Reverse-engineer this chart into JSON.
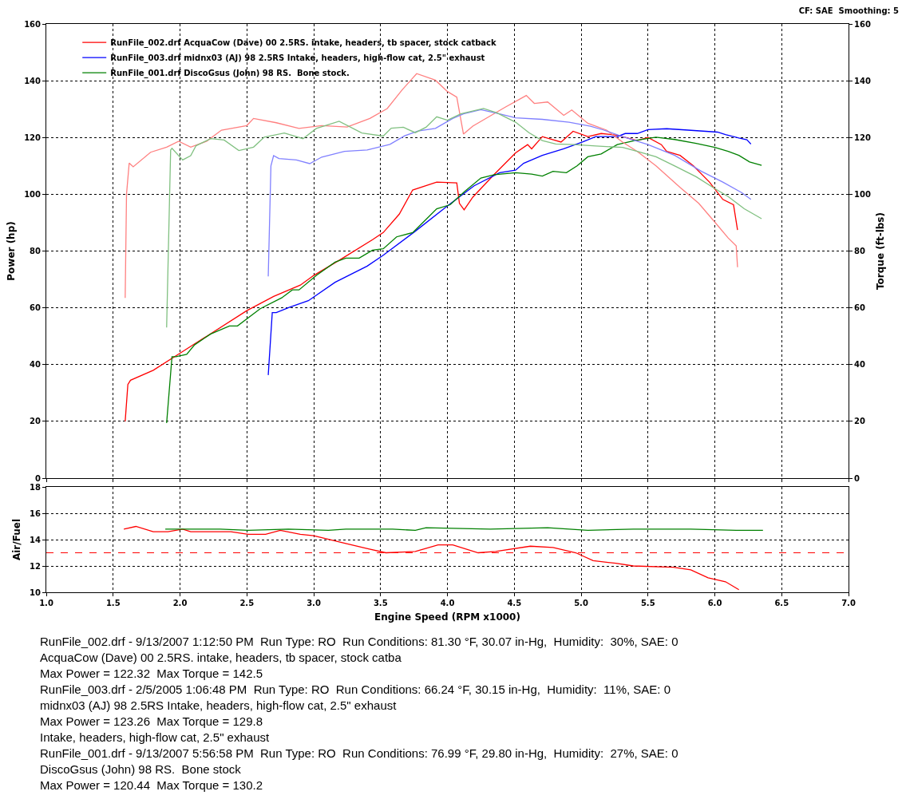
{
  "chart_data": [
    {
      "type": "line",
      "ylabel": "Power (hp)",
      "y2label": "Torque (ft-lbs)",
      "xlim": [
        1,
        7
      ],
      "xticks": [
        1,
        1.5,
        2,
        2.5,
        3,
        3.5,
        4,
        4.5,
        5,
        5.5,
        6,
        6.5,
        7
      ],
      "ylim": [
        0,
        160
      ],
      "yticks": [
        0,
        20,
        40,
        60,
        80,
        100,
        120,
        140,
        160
      ],
      "y2lim": [
        0,
        160
      ],
      "y2ticks": [
        0,
        20,
        40,
        60,
        80,
        100,
        120,
        140,
        160
      ],
      "tick_labels": "y",
      "grid": true,
      "legend": "top left",
      "annotations": [
        "CF: SAE  Smoothing: 5"
      ],
      "series": [
        {
          "name": "RunFile_002.drf AcquaCow (Dave) 00 2.5RS. intake, headers, tb spacer, stock catback",
          "color": "#ff0000",
          "x": [
            1.59,
            1.61,
            1.63,
            1.8,
            2.0,
            2.2,
            2.5,
            2.7,
            2.9,
            3.0,
            3.2,
            3.44,
            3.52,
            3.64,
            3.74,
            3.92,
            4.07,
            4.09,
            4.125,
            4.19,
            4.35,
            4.51,
            4.6,
            4.63,
            4.71,
            4.85,
            4.94,
            5.05,
            5.15,
            5.27,
            5.42,
            5.5,
            5.6,
            5.64,
            5.74,
            5.84,
            5.96,
            6.06,
            6.14,
            6.17
          ],
          "values": [
            20,
            33,
            34.5,
            38,
            44,
            50,
            59,
            64,
            68,
            71.4,
            77,
            84,
            86.5,
            93,
            101.5,
            104.3,
            104,
            96.8,
            94.5,
            99,
            107,
            114.6,
            117.5,
            116,
            120.3,
            118.4,
            122.2,
            120.3,
            121.4,
            120.8,
            118.9,
            120,
            117.5,
            115.1,
            113.7,
            110,
            104.3,
            98.2,
            96.3,
            87.4
          ]
        },
        {
          "name": "RunFile_003.drf midnx03 (AJ) 98 2.5RS Intake, headers, high-flow cat, 2.5\" exhaust",
          "color": "#0000ff",
          "x": [
            2.66,
            2.69,
            2.72,
            2.82,
            2.96,
            3.16,
            3.4,
            3.52,
            3.76,
            4.0,
            4.2,
            4.39,
            4.51,
            4.57,
            4.71,
            4.87,
            5.01,
            5.11,
            5.27,
            5.33,
            5.42,
            5.5,
            5.64,
            5.8,
            6.02,
            6.08,
            6.18,
            6.24,
            6.27
          ],
          "values": [
            36.3,
            58.3,
            58.3,
            60.2,
            62.5,
            69,
            74.7,
            78.5,
            87,
            95.9,
            103,
            107.6,
            108.5,
            110.9,
            113.7,
            116,
            118.4,
            120.3,
            120.3,
            121.4,
            121.4,
            122.8,
            123.1,
            122.6,
            121.9,
            121,
            119.8,
            119.2,
            117.7
          ]
        },
        {
          "name": "RunFile_001.drf DiscoGsus (John) 98 RS.  Bone stock.",
          "color": "#008000",
          "x": [
            1.9,
            1.94,
            1.97,
            2.05,
            2.11,
            2.23,
            2.37,
            2.43,
            2.6,
            2.76,
            2.84,
            2.89,
            3.02,
            3.16,
            3.24,
            3.34,
            3.44,
            3.52,
            3.62,
            3.74,
            3.82,
            3.92,
            4.02,
            4.13,
            4.25,
            4.35,
            4.51,
            4.63,
            4.71,
            4.79,
            4.89,
            4.97,
            5.05,
            5.15,
            5.27,
            5.4,
            5.56,
            5.7,
            5.86,
            6.0,
            6.1,
            6.18,
            6.26,
            6.35
          ],
          "values": [
            19.4,
            42.8,
            42.8,
            43.6,
            47,
            50.8,
            53.6,
            53.6,
            59.7,
            63.5,
            66.3,
            66.3,
            71.4,
            76.1,
            77.5,
            77.5,
            80.3,
            80.8,
            85,
            86.5,
            90.2,
            94.9,
            96.3,
            101,
            105.7,
            106.9,
            107.6,
            107.1,
            106.4,
            108.1,
            107.6,
            110,
            113.2,
            114.2,
            117.5,
            118.9,
            120.1,
            119.3,
            117.9,
            116.5,
            115.1,
            113.7,
            111.4,
            110.2
          ]
        },
        {
          "color": "#ff8080",
          "axis": "y2",
          "x": [
            1.59,
            1.6,
            1.62,
            1.65,
            1.78,
            1.9,
            1.99,
            2.08,
            2.2,
            2.31,
            2.5,
            2.55,
            2.72,
            2.89,
            3.06,
            3.25,
            3.42,
            3.55,
            3.66,
            3.77,
            3.91,
            4.0,
            4.07,
            4.12,
            4.19,
            4.31,
            4.43,
            4.59,
            4.65,
            4.75,
            4.87,
            4.93,
            5.05,
            5.19,
            5.31,
            5.42,
            5.56,
            5.74,
            5.88,
            6.0,
            6.1,
            6.16,
            6.17
          ],
          "values": [
            63.5,
            100,
            111,
            109.7,
            114.8,
            116.6,
            118.7,
            116.6,
            118.7,
            122.6,
            124.2,
            126.7,
            125.2,
            123.2,
            124.2,
            123.7,
            126.7,
            130.2,
            136.7,
            142.5,
            140.2,
            136.2,
            134.2,
            121.2,
            124,
            127.3,
            130.6,
            134.8,
            132,
            132.5,
            127.8,
            129.7,
            125,
            122.6,
            118.4,
            115.1,
            110,
            102.4,
            96.8,
            90.2,
            84.6,
            81.8,
            74.3
          ]
        },
        {
          "color": "#8080ff",
          "axis": "y2",
          "x": [
            2.66,
            2.68,
            2.7,
            2.74,
            2.87,
            2.97,
            3.06,
            3.23,
            3.4,
            3.57,
            3.68,
            3.78,
            3.91,
            4.04,
            4.12,
            4.25,
            4.39,
            4.51,
            4.71,
            4.91,
            5.07,
            5.17,
            5.31,
            5.5,
            5.7,
            5.9,
            6.06,
            6.2,
            6.27
          ],
          "values": [
            71.1,
            110,
            113.6,
            112.6,
            112.1,
            110.8,
            113.1,
            115.1,
            115.6,
            117.6,
            120.6,
            122.3,
            123.2,
            126.7,
            128.3,
            129.8,
            128.3,
            126.9,
            126.4,
            125.4,
            124,
            122.6,
            120.3,
            117.5,
            113.7,
            108.1,
            104.3,
            100.6,
            98.2
          ]
        },
        {
          "color": "#80c080",
          "axis": "y2",
          "x": [
            1.9,
            1.93,
            1.94,
            2.02,
            2.08,
            2.12,
            2.23,
            2.33,
            2.44,
            2.55,
            2.63,
            2.78,
            2.92,
            3.02,
            3.19,
            3.36,
            3.52,
            3.58,
            3.67,
            3.76,
            3.84,
            3.92,
            4.0,
            4.1,
            4.27,
            4.37,
            4.51,
            4.61,
            4.71,
            4.81,
            4.95,
            5.11,
            5.31,
            5.42,
            5.56,
            5.7,
            5.86,
            6.0,
            6.1,
            6.22,
            6.35
          ],
          "values": [
            53.1,
            115.6,
            116.2,
            112.1,
            113.6,
            117.1,
            119.6,
            119.1,
            115.4,
            116.6,
            120.1,
            121.6,
            119.6,
            123.2,
            125.7,
            121.6,
            120.5,
            123.3,
            123.6,
            121.7,
            123.6,
            127.3,
            126.1,
            128.3,
            130.2,
            128.7,
            125.4,
            121.7,
            118.9,
            117.7,
            117.5,
            117,
            116.5,
            115.1,
            113.2,
            110,
            106.2,
            102,
            99.2,
            94.9,
            91.4
          ]
        }
      ]
    },
    {
      "type": "line",
      "xlabel": "Engine Speed (RPM x1000)",
      "ylabel": "Air/Fuel",
      "xlim": [
        1,
        7
      ],
      "xticks": [
        {
          "value": 1,
          "label": "1.0"
        },
        1.5,
        {
          "value": 2,
          "label": "2.0"
        },
        2.5,
        {
          "value": 3,
          "label": "3.0"
        },
        3.5,
        {
          "value": 4,
          "label": "4.0"
        },
        4.5,
        {
          "value": 5,
          "label": "5.0"
        },
        5.5,
        {
          "value": 6,
          "label": "6.0"
        },
        6.5,
        {
          "value": 7,
          "label": "7.0"
        }
      ],
      "ylim": [
        10,
        18
      ],
      "yticks": [
        10,
        12,
        14,
        16,
        18
      ],
      "grid": true,
      "ref_lines": [
        {
          "axis": "y",
          "value": 13,
          "color": "#ff0000",
          "line_style": "dashed"
        }
      ],
      "annotations": [
        "RunFile_002.drf - 9/13/2007 1:12:50 PM  Run Type: RO  Run Conditions: 81.30 °F, 30.07 in-Hg,  Humidity:  30%, SAE: 0",
        "AcquaCow (Dave) 00 2.5RS. intake, headers, tb spacer, stock catba",
        "Max Power = 122.32  Max Torque = 142.5",
        "RunFile_003.drf - 2/5/2005 1:06:48 PM  Run Type: RO  Run Conditions: 66.24 °F, 30.15 in-Hg,  Humidity:  11%, SAE: 0",
        "midnx03 (AJ) 98 2.5RS Intake, headers, high-flow cat, 2.5\" exhaust",
        "Max Power = 123.26  Max Torque = 129.8",
        "Intake, headers, high-flow cat, 2.5\" exhaust",
        "RunFile_001.drf - 9/13/2007 5:56:58 PM  Run Type: RO  Run Conditions: 76.99 °F, 29.80 in-Hg,  Humidity:  27%, SAE: 0",
        "DiscoGsus (John) 98 RS.  Bone stock",
        "Max Power = 120.44  Max Torque = 130.2"
      ],
      "series": [
        {
          "color": "#ff0000",
          "x": [
            1.58,
            1.67,
            1.8,
            1.91,
            2.02,
            2.08,
            2.38,
            2.51,
            2.64,
            2.75,
            2.9,
            3.0,
            3.24,
            3.41,
            3.54,
            3.76,
            3.93,
            4.04,
            4.23,
            4.36,
            4.62,
            4.79,
            4.96,
            5.09,
            5.26,
            5.39,
            5.69,
            5.82,
            5.95,
            6.08,
            6.18
          ],
          "values": [
            14.8,
            15.0,
            14.6,
            14.6,
            14.8,
            14.6,
            14.6,
            14.4,
            14.4,
            14.7,
            14.4,
            14.3,
            13.7,
            13.3,
            13.0,
            13.1,
            13.6,
            13.6,
            13.0,
            13.1,
            13.5,
            13.4,
            13.0,
            12.4,
            12.2,
            12.0,
            11.9,
            11.7,
            11.1,
            10.8,
            10.2
          ]
        },
        {
          "color": "#008000",
          "x": [
            1.89,
            2.08,
            2.3,
            2.51,
            2.81,
            3.11,
            3.24,
            3.59,
            3.76,
            3.84,
            4.32,
            4.75,
            5.05,
            5.39,
            5.82,
            6.16,
            6.36
          ],
          "values": [
            14.8,
            14.8,
            14.8,
            14.7,
            14.8,
            14.7,
            14.8,
            14.8,
            14.7,
            14.9,
            14.8,
            14.9,
            14.7,
            14.8,
            14.8,
            14.7,
            14.7
          ]
        }
      ]
    }
  ]
}
